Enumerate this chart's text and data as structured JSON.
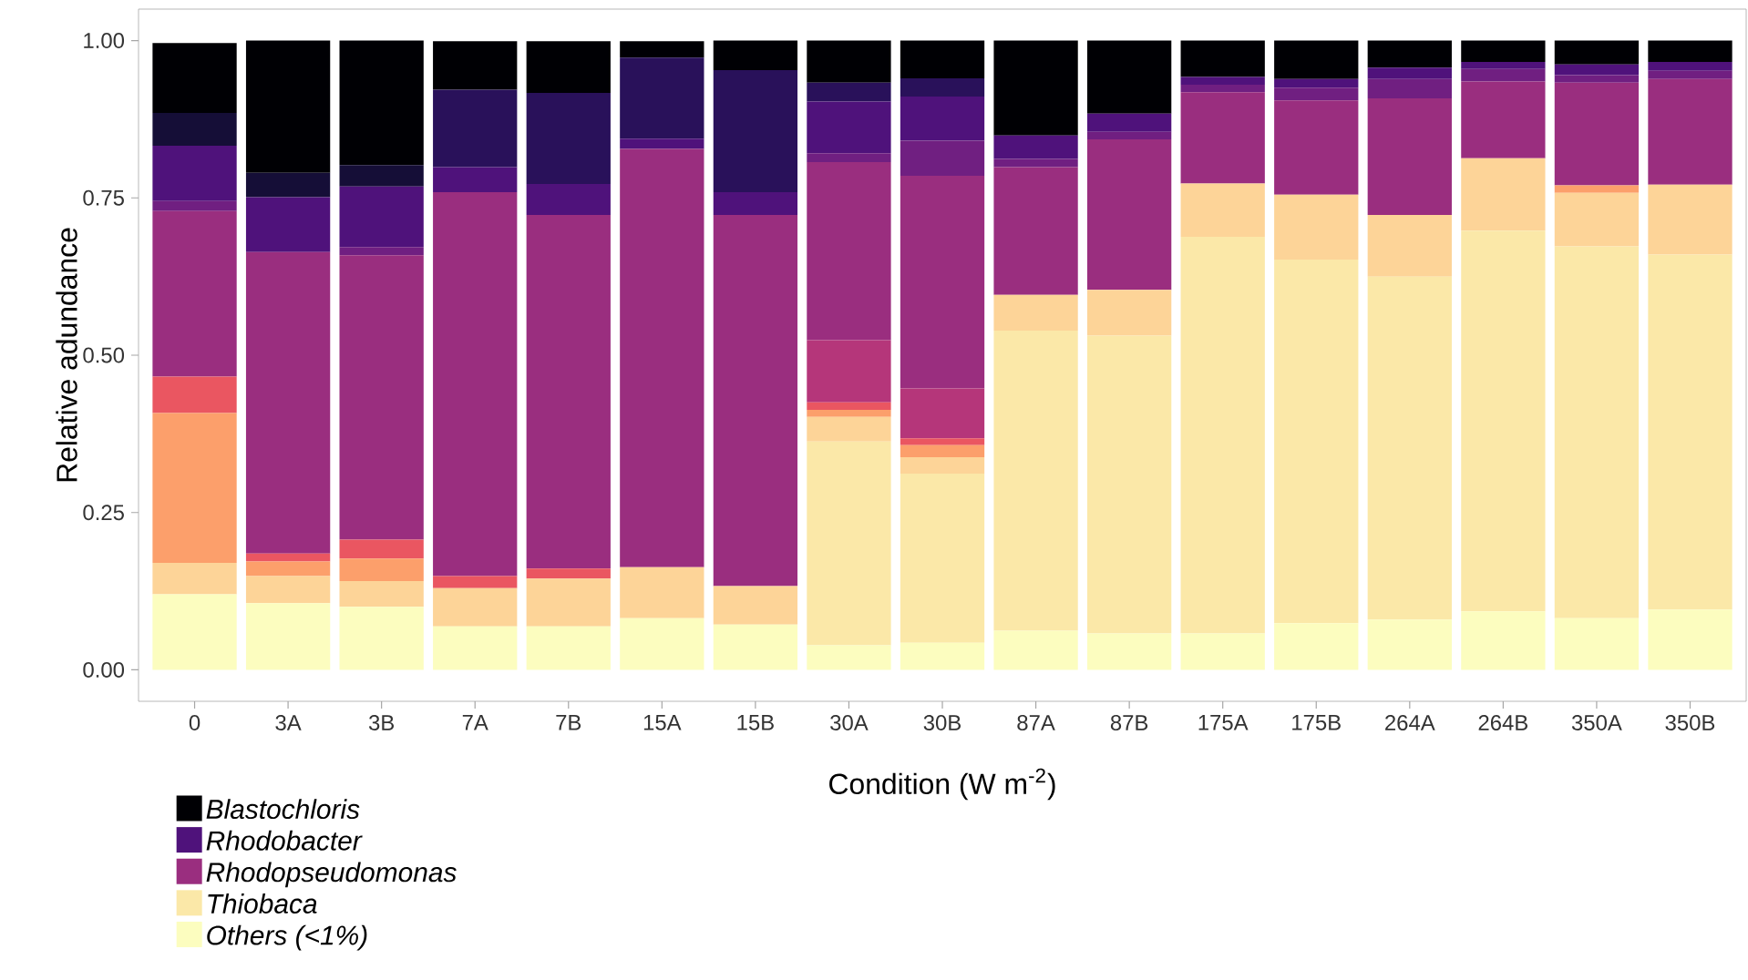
{
  "chart_data": {
    "type": "bar",
    "stacked": true,
    "xlabel": "Condition (W m$^{-2}$)",
    "ylabel": "Relative adundance",
    "categories": [
      "0",
      "3A",
      "3B",
      "7A",
      "7B",
      "15A",
      "15B",
      "30A",
      "30B",
      "87A",
      "87B",
      "175A",
      "175B",
      "264A",
      "264B",
      "350A",
      "350B"
    ],
    "ylim": [
      -0.05,
      1.05
    ],
    "yticks": [
      {
        "value": 0,
        "label": "0.00"
      },
      {
        "value": 0.25,
        "label": "0.25"
      },
      {
        "value": 0.5,
        "label": "0.50"
      },
      {
        "value": 0.75,
        "label": "0.75"
      },
      {
        "value": 1,
        "label": "1.00"
      }
    ],
    "grid": false,
    "legend": "bottom left",
    "series": [
      {
        "name": "Others (<1%)",
        "color": "#fcfdbf",
        "values": [
          0.12,
          0.106,
          0.1,
          0.069,
          0.069,
          0.082,
          0.072,
          0.039,
          0.043,
          0.062,
          0.058,
          0.058,
          0.074,
          0.08,
          0.093,
          0.082,
          0.096
        ]
      },
      {
        "name": "Thiobaca",
        "color": "#fbe8a8",
        "values": [
          0,
          0,
          0,
          0,
          0,
          0,
          0,
          0.324,
          0.269,
          0.477,
          0.473,
          0.63,
          0.578,
          0.545,
          0.605,
          0.591,
          0.564
        ]
      },
      {
        "color": "#fdd498",
        "values": [
          0.05,
          0.043,
          0.041,
          0.061,
          0.076,
          0.081,
          0.061,
          0.039,
          0.026,
          0.057,
          0.073,
          0.085,
          0.103,
          0.098,
          0.115,
          0.085,
          0.111
        ]
      },
      {
        "color": "#fc9f6b",
        "values": [
          0.238,
          0.023,
          0.036,
          0,
          0,
          0,
          0,
          0.011,
          0.019,
          0,
          0,
          0,
          0,
          0,
          0,
          0.012,
          0
        ]
      },
      {
        "color": "#ea5661",
        "values": [
          0.058,
          0.013,
          0.03,
          0.019,
          0.016,
          0,
          0,
          0.012,
          0.011,
          0,
          0,
          0,
          0,
          0,
          0,
          0,
          0
        ]
      },
      {
        "color": "#b5367a",
        "values": [
          0,
          0,
          0,
          0,
          0,
          0,
          0,
          0.099,
          0.079,
          0,
          0,
          0,
          0,
          0,
          0,
          0,
          0
        ]
      },
      {
        "name": "Rhodopseudomonas",
        "color": "#9a2e7f",
        "values": [
          0.263,
          0.479,
          0.452,
          0.61,
          0.562,
          0.665,
          0.59,
          0.283,
          0.338,
          0.203,
          0.239,
          0.145,
          0.15,
          0.185,
          0.122,
          0.163,
          0.168
        ]
      },
      {
        "color": "#701f81",
        "values": [
          0.016,
          0,
          0.013,
          0,
          0,
          0,
          0,
          0.014,
          0.056,
          0.013,
          0.012,
          0.012,
          0.02,
          0.031,
          0.02,
          0.012,
          0.013
        ]
      },
      {
        "name": "Rhodobacter",
        "color": "#4f127b",
        "values": [
          0.088,
          0.087,
          0.096,
          0.04,
          0.049,
          0.016,
          0.036,
          0.082,
          0.07,
          0.037,
          0.029,
          0.012,
          0.014,
          0.018,
          0.011,
          0.017,
          0.014
        ]
      },
      {
        "color": "#29115a",
        "values": [
          0,
          0,
          0,
          0.123,
          0.145,
          0.129,
          0.194,
          0.03,
          0.029,
          0,
          0,
          0,
          0,
          0,
          0,
          0,
          0
        ]
      },
      {
        "color": "#150e37",
        "values": [
          0.052,
          0.039,
          0.034,
          0,
          0,
          0,
          0,
          0,
          0,
          0,
          0,
          0,
          0,
          0,
          0,
          0,
          0
        ]
      },
      {
        "name": "Blastochloris",
        "color": "#000004",
        "values": [
          0.111,
          0.21,
          0.198,
          0.077,
          0.082,
          0.026,
          0.047,
          0.067,
          0.06,
          0.151,
          0.116,
          0.058,
          0.061,
          0.043,
          0.034,
          0.038,
          0.034
        ]
      }
    ]
  }
}
